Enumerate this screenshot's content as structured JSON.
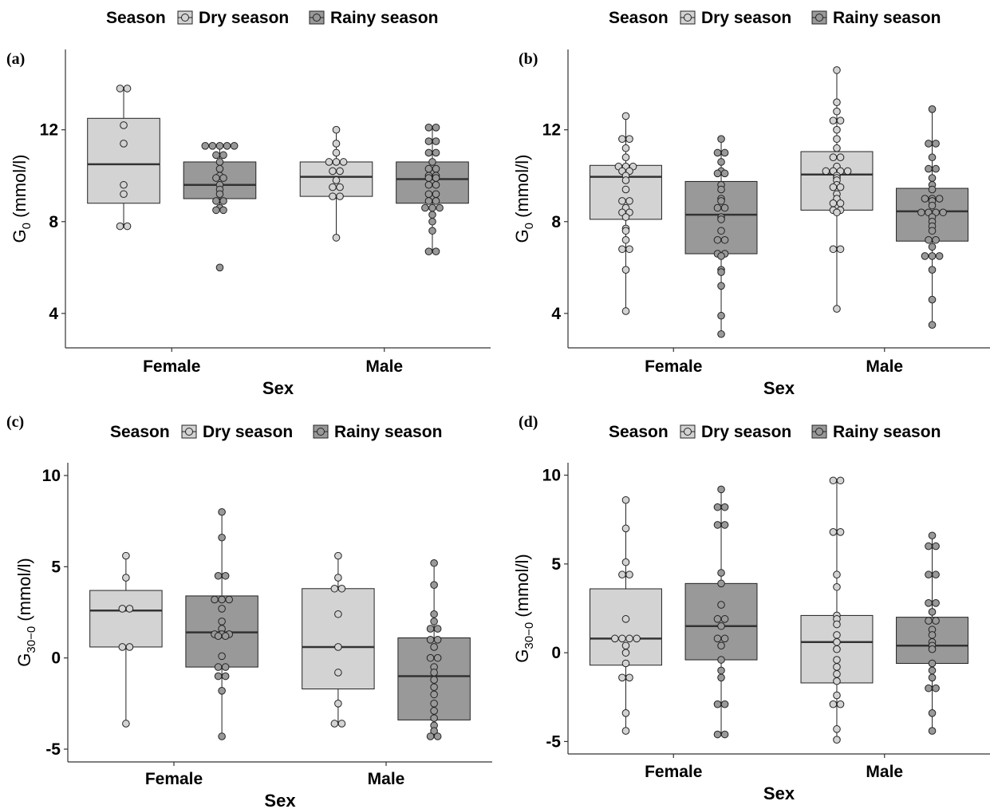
{
  "colors": {
    "dry": "#d3d3d3",
    "rainy": "#999999",
    "stroke": "#000000",
    "median": "#333333"
  },
  "legend": {
    "title": "Season",
    "items": [
      "Dry season",
      "Rainy season"
    ]
  },
  "chart_data": [
    {
      "panel": "(a)",
      "type": "boxplot",
      "ylabel": "G0 (mmol/l)",
      "ylabel_main": "G",
      "ylabel_sub": "0",
      "ylabel_rest": " (mmol/l)",
      "xlabel": "Sex",
      "categories": [
        "Female",
        "Male"
      ],
      "ylim": [
        2.5,
        15.5
      ],
      "yticks": [
        "4",
        "8",
        "12"
      ],
      "boxes": [
        {
          "sex": "Female",
          "season": "Dry season",
          "whisker_low": 7.8,
          "q1": 8.8,
          "median": 10.5,
          "q3": 12.5,
          "whisker_high": 13.8
        },
        {
          "sex": "Female",
          "season": "Rainy season",
          "whisker_low": 8.5,
          "q1": 9.0,
          "median": 9.6,
          "q3": 10.6,
          "whisker_high": 11.3
        },
        {
          "sex": "Male",
          "season": "Dry season",
          "whisker_low": 7.3,
          "q1": 9.1,
          "median": 9.95,
          "q3": 10.6,
          "whisker_high": 12.0
        },
        {
          "sex": "Male",
          "season": "Rainy season",
          "whisker_low": 6.7,
          "q1": 8.8,
          "median": 9.85,
          "q3": 10.6,
          "whisker_high": 12.1
        }
      ],
      "points": [
        [
          13.8,
          13.8,
          12.2,
          11.4,
          9.6,
          9.2,
          7.8,
          7.8
        ],
        [
          11.3,
          11.3,
          11.3,
          11.3,
          11.3,
          10.9,
          10.9,
          10.6,
          10.3,
          10.0,
          9.9,
          9.9,
          9.6,
          9.4,
          9.2,
          8.9,
          8.9,
          8.6,
          8.5,
          8.5,
          6.0
        ],
        [
          12.0,
          11.4,
          11.0,
          10.6,
          10.6,
          10.6,
          10.2,
          10.2,
          9.8,
          9.5,
          9.5,
          9.1,
          9.1,
          7.3
        ],
        [
          12.1,
          12.1,
          11.5,
          11.5,
          11.0,
          11.0,
          10.6,
          10.3,
          10.3,
          10.0,
          10.0,
          9.9,
          9.9,
          9.6,
          9.6,
          9.2,
          9.2,
          8.9,
          8.9,
          8.6,
          8.6,
          8.6,
          8.3,
          8.0,
          7.6,
          6.7,
          6.7
        ]
      ]
    },
    {
      "panel": "(b)",
      "type": "boxplot",
      "ylabel": "G0 (mmol/l)",
      "ylabel_main": "G",
      "ylabel_sub": "0",
      "ylabel_rest": " (mmol/l)",
      "xlabel": "Sex",
      "categories": [
        "Female",
        "Male"
      ],
      "ylim": [
        2.5,
        15.5
      ],
      "yticks": [
        "4",
        "8",
        "12"
      ],
      "boxes": [
        {
          "sex": "Female",
          "season": "Dry season",
          "whisker_low": 4.1,
          "q1": 8.1,
          "median": 9.95,
          "q3": 10.45,
          "whisker_high": 12.6
        },
        {
          "sex": "Female",
          "season": "Rainy season",
          "whisker_low": 3.1,
          "q1": 6.6,
          "median": 8.3,
          "q3": 9.75,
          "whisker_high": 11.6
        },
        {
          "sex": "Male",
          "season": "Dry season",
          "whisker_low": 4.2,
          "q1": 8.5,
          "median": 10.05,
          "q3": 11.05,
          "whisker_high": 14.6
        },
        {
          "sex": "Male",
          "season": "Rainy season",
          "whisker_low": 3.5,
          "q1": 7.15,
          "median": 8.45,
          "q3": 9.45,
          "whisker_high": 12.9
        }
      ],
      "points": [
        [
          12.6,
          11.6,
          11.6,
          11.2,
          10.8,
          10.4,
          10.4,
          10.4,
          10.2,
          10.2,
          10.0,
          9.8,
          9.4,
          8.9,
          8.9,
          8.6,
          8.4,
          8.4,
          8.2,
          7.7,
          7.6,
          7.2,
          6.8,
          6.8,
          5.9,
          4.1
        ],
        [
          11.6,
          11.0,
          11.0,
          10.6,
          10.2,
          10.1,
          10.1,
          9.6,
          9.4,
          9.0,
          8.9,
          8.6,
          8.6,
          8.2,
          8.1,
          7.6,
          7.2,
          7.2,
          6.6,
          6.6,
          6.5,
          5.9,
          5.8,
          5.2,
          3.9,
          3.1
        ],
        [
          14.6,
          13.2,
          12.8,
          12.4,
          12.4,
          12.0,
          11.6,
          11.2,
          10.8,
          10.8,
          10.4,
          10.2,
          10.2,
          10.2,
          10.2,
          10.0,
          9.9,
          9.8,
          9.6,
          9.5,
          9.5,
          9.2,
          9.0,
          8.8,
          8.8,
          8.5,
          8.5,
          8.4,
          6.8,
          6.8,
          4.2
        ],
        [
          12.9,
          11.4,
          11.4,
          10.8,
          10.3,
          10.3,
          9.9,
          9.6,
          9.4,
          9.0,
          9.0,
          9.0,
          8.9,
          8.7,
          8.4,
          8.4,
          8.4,
          8.4,
          8.2,
          8.0,
          7.8,
          7.6,
          7.2,
          7.2,
          6.9,
          6.5,
          6.5,
          6.5,
          5.9,
          4.6,
          3.5
        ]
      ]
    },
    {
      "panel": "(c)",
      "type": "boxplot",
      "ylabel": "G30−0 (mmol/l)",
      "ylabel_main": "G",
      "ylabel_sub": "30−0",
      "ylabel_rest": " (mmol/l)",
      "xlabel": "Sex",
      "categories": [
        "Female",
        "Male"
      ],
      "ylim": [
        -5.7,
        10.7
      ],
      "yticks": [
        "-5",
        "0",
        "5",
        "10"
      ],
      "boxes": [
        {
          "sex": "Female",
          "season": "Dry season",
          "whisker_low": -3.6,
          "q1": 0.6,
          "median": 2.6,
          "q3": 3.7,
          "whisker_high": 5.6
        },
        {
          "sex": "Female",
          "season": "Rainy season",
          "whisker_low": -4.3,
          "q1": -0.5,
          "median": 1.4,
          "q3": 3.4,
          "whisker_high": 8.0
        },
        {
          "sex": "Male",
          "season": "Dry season",
          "whisker_low": -3.6,
          "q1": -1.7,
          "median": 0.6,
          "q3": 3.8,
          "whisker_high": 5.6
        },
        {
          "sex": "Male",
          "season": "Rainy season",
          "whisker_low": -4.3,
          "q1": -3.4,
          "median": -1.0,
          "q3": 1.1,
          "whisker_high": 5.2
        }
      ],
      "points": [
        [
          5.6,
          4.4,
          2.7,
          2.7,
          0.6,
          0.6,
          -3.6
        ],
        [
          8.0,
          6.6,
          4.5,
          4.5,
          3.2,
          3.2,
          3.2,
          2.7,
          2.0,
          1.6,
          1.3,
          1.3,
          1.3,
          1.2,
          1.2,
          0.1,
          -0.5,
          -0.5,
          -1.0,
          -1.0,
          -1.8,
          -4.3
        ],
        [
          5.6,
          4.4,
          3.8,
          3.8,
          2.4,
          0.6,
          -0.8,
          -2.5,
          -3.6,
          -3.6
        ],
        [
          5.2,
          4.0,
          2.4,
          2.0,
          1.6,
          1.6,
          1.0,
          1.0,
          0.6,
          0.0,
          0.0,
          -0.5,
          -0.8,
          -1.2,
          -1.6,
          -2.0,
          -2.5,
          -2.9,
          -3.3,
          -3.7,
          -4.0,
          -4.3,
          -4.3
        ]
      ]
    },
    {
      "panel": "(d)",
      "type": "boxplot",
      "ylabel": "G30−0 (mmol/l)",
      "ylabel_main": "G",
      "ylabel_sub": "30−0",
      "ylabel_rest": " (mmol/l)",
      "xlabel": "Sex",
      "categories": [
        "Female",
        "Male"
      ],
      "ylim": [
        -5.7,
        10.7
      ],
      "yticks": [
        "-5",
        "0",
        "5",
        "10"
      ],
      "boxes": [
        {
          "sex": "Female",
          "season": "Dry season",
          "whisker_low": -4.4,
          "q1": -0.7,
          "median": 0.8,
          "q3": 3.6,
          "whisker_high": 8.6
        },
        {
          "sex": "Female",
          "season": "Rainy season",
          "whisker_low": -4.6,
          "q1": -0.4,
          "median": 1.5,
          "q3": 3.9,
          "whisker_high": 9.2
        },
        {
          "sex": "Male",
          "season": "Dry season",
          "whisker_low": -4.9,
          "q1": -1.7,
          "median": 0.6,
          "q3": 2.1,
          "whisker_high": 9.7
        },
        {
          "sex": "Male",
          "season": "Rainy season",
          "whisker_low": -4.4,
          "q1": -0.6,
          "median": 0.4,
          "q3": 2.0,
          "whisker_high": 6.6
        }
      ],
      "points": [
        [
          8.6,
          7.0,
          5.1,
          4.4,
          4.4,
          1.9,
          0.8,
          0.8,
          0.8,
          0.8,
          0.4,
          0.0,
          -0.6,
          -1.4,
          -1.4,
          -3.4,
          -4.4
        ],
        [
          9.2,
          8.2,
          8.2,
          7.2,
          7.2,
          4.5,
          3.9,
          2.7,
          1.9,
          1.9,
          1.5,
          0.8,
          0.8,
          0.4,
          -0.4,
          -1.0,
          -1.4,
          -2.9,
          -2.9,
          -4.6,
          -4.6
        ],
        [
          9.7,
          9.7,
          6.8,
          6.8,
          4.4,
          3.7,
          2.1,
          1.9,
          1.6,
          1.0,
          0.6,
          0.2,
          -0.4,
          -0.8,
          -1.2,
          -1.6,
          -2.4,
          -2.9,
          -2.9,
          -4.3,
          -4.9
        ],
        [
          6.6,
          6.0,
          6.0,
          4.4,
          4.4,
          2.8,
          2.8,
          2.3,
          1.8,
          1.8,
          1.3,
          1.0,
          0.6,
          0.4,
          0.2,
          -0.6,
          -1.0,
          -1.4,
          -2.0,
          -2.0,
          -3.4,
          -4.4
        ]
      ]
    }
  ]
}
